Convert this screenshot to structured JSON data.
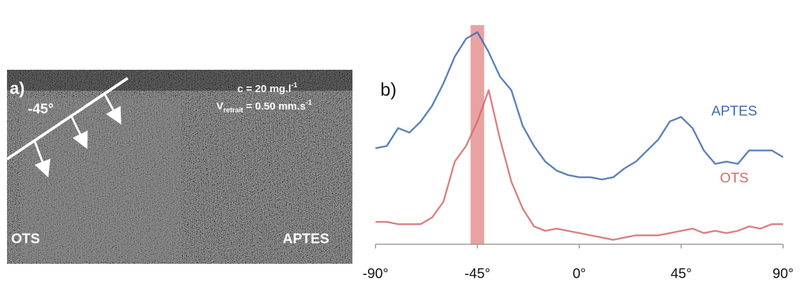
{
  "panel_a": {
    "label": "a)",
    "angle": "-45°",
    "concentration": {
      "text": "c = 20 mg.l",
      "superscript": "-1"
    },
    "velocity": {
      "symbol": "V",
      "subscript": "retrait",
      "text": " = 0.50 mm.s",
      "superscript": "-1"
    },
    "left_label": "OTS",
    "right_label": "APTES"
  },
  "chart_data": {
    "type": "line",
    "panel_label": "b)",
    "x": [
      -90,
      -85,
      -80,
      -75,
      -70,
      -65,
      -60,
      -55,
      -50,
      -45,
      -40,
      -35,
      -30,
      -25,
      -20,
      -15,
      -10,
      -5,
      0,
      5,
      10,
      15,
      20,
      25,
      30,
      35,
      40,
      45,
      50,
      55,
      60,
      65,
      70,
      75,
      80,
      85,
      90
    ],
    "series": [
      {
        "name": "APTES",
        "color": "#3d6cae",
        "values": [
          43,
          44,
          52,
          50,
          55,
          62,
          72,
          84,
          92,
          95,
          86,
          75,
          69,
          53,
          44,
          37,
          33,
          31,
          30,
          30,
          29,
          30,
          34,
          37,
          42,
          47,
          55,
          57,
          52,
          42,
          36,
          37,
          36,
          42,
          42,
          42,
          39
        ]
      },
      {
        "name": "OTS",
        "color": "#d46a6a",
        "values": [
          10,
          10,
          9,
          9,
          9,
          12,
          19,
          37,
          44,
          55,
          69,
          47,
          28,
          16,
          8,
          6,
          7,
          6,
          5,
          4,
          3,
          2,
          3,
          4,
          4,
          4,
          5,
          6,
          7,
          5,
          6,
          5,
          6,
          8,
          7,
          9,
          9
        ]
      }
    ],
    "highlight_x": -45,
    "xlim": [
      -90,
      90
    ],
    "xticks": [
      {
        "value": -90,
        "label": "-90°"
      },
      {
        "value": -45,
        "label": "-45°"
      },
      {
        "value": 0,
        "label": "0°"
      },
      {
        "value": 45,
        "label": "45°"
      },
      {
        "value": 90,
        "label": "90°"
      }
    ],
    "ylim": [
      0,
      100
    ]
  }
}
